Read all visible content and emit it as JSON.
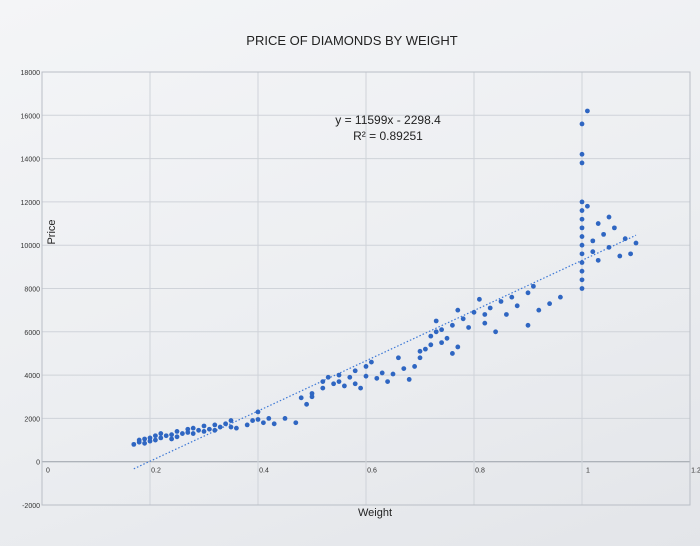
{
  "chart_data": {
    "type": "scatter",
    "title": "PRICE OF DIAMONDS BY WEIGHT",
    "xlabel": "Weight",
    "ylabel": "Price",
    "xlim": [
      0,
      1.2
    ],
    "ylim": [
      -2000,
      18000
    ],
    "x_ticks": [
      "0",
      "0.2",
      "0.4",
      "0.6",
      "0.8",
      "1",
      "1.2"
    ],
    "y_ticks": [
      "18000",
      "16000",
      "14000",
      "12000",
      "10000",
      "8000",
      "6000",
      "4000",
      "2000",
      "0",
      "-2000"
    ],
    "grid": true,
    "trendline": {
      "equation": "y = 11599x - 2298.4",
      "r_squared": "R² = 0.89251",
      "slope": 11599,
      "intercept": -2298.4,
      "style": "dotted",
      "x_range": [
        0.17,
        1.1
      ]
    },
    "colors": {
      "points": "#2f66c2",
      "trendline": "#3d78d6",
      "grid": "#cfd3d9"
    },
    "series": [
      {
        "points": [
          [
            0.17,
            800
          ],
          [
            0.18,
            900
          ],
          [
            0.18,
            1000
          ],
          [
            0.19,
            850
          ],
          [
            0.19,
            1050
          ],
          [
            0.2,
            950
          ],
          [
            0.2,
            1100
          ],
          [
            0.21,
            1200
          ],
          [
            0.21,
            1000
          ],
          [
            0.22,
            1100
          ],
          [
            0.22,
            1300
          ],
          [
            0.23,
            1200
          ],
          [
            0.24,
            1050
          ],
          [
            0.24,
            1250
          ],
          [
            0.25,
            1150
          ],
          [
            0.25,
            1400
          ],
          [
            0.26,
            1300
          ],
          [
            0.27,
            1500
          ],
          [
            0.27,
            1350
          ],
          [
            0.28,
            1300
          ],
          [
            0.28,
            1550
          ],
          [
            0.29,
            1450
          ],
          [
            0.3,
            1400
          ],
          [
            0.3,
            1650
          ],
          [
            0.31,
            1500
          ],
          [
            0.32,
            1700
          ],
          [
            0.32,
            1450
          ],
          [
            0.33,
            1600
          ],
          [
            0.34,
            1750
          ],
          [
            0.35,
            1900
          ],
          [
            0.35,
            1600
          ],
          [
            0.36,
            1550
          ],
          [
            0.38,
            1700
          ],
          [
            0.39,
            1900
          ],
          [
            0.4,
            2300
          ],
          [
            0.4,
            1950
          ],
          [
            0.41,
            1800
          ],
          [
            0.42,
            2000
          ],
          [
            0.43,
            1750
          ],
          [
            0.45,
            2000
          ],
          [
            0.47,
            1800
          ],
          [
            0.48,
            2950
          ],
          [
            0.49,
            2650
          ],
          [
            0.5,
            3000
          ],
          [
            0.5,
            3150
          ],
          [
            0.52,
            3700
          ],
          [
            0.52,
            3400
          ],
          [
            0.53,
            3900
          ],
          [
            0.54,
            3600
          ],
          [
            0.55,
            4000
          ],
          [
            0.55,
            3700
          ],
          [
            0.56,
            3500
          ],
          [
            0.57,
            3900
          ],
          [
            0.58,
            4200
          ],
          [
            0.58,
            3600
          ],
          [
            0.59,
            3400
          ],
          [
            0.6,
            4400
          ],
          [
            0.6,
            3950
          ],
          [
            0.61,
            4600
          ],
          [
            0.62,
            3850
          ],
          [
            0.63,
            4100
          ],
          [
            0.64,
            3700
          ],
          [
            0.65,
            4050
          ],
          [
            0.66,
            4800
          ],
          [
            0.67,
            4300
          ],
          [
            0.68,
            3800
          ],
          [
            0.69,
            4400
          ],
          [
            0.7,
            5100
          ],
          [
            0.7,
            4800
          ],
          [
            0.71,
            5200
          ],
          [
            0.72,
            5800
          ],
          [
            0.72,
            5400
          ],
          [
            0.73,
            6500
          ],
          [
            0.73,
            6000
          ],
          [
            0.74,
            5500
          ],
          [
            0.74,
            6100
          ],
          [
            0.75,
            5700
          ],
          [
            0.76,
            6300
          ],
          [
            0.76,
            5000
          ],
          [
            0.77,
            5300
          ],
          [
            0.77,
            7000
          ],
          [
            0.78,
            6600
          ],
          [
            0.79,
            6200
          ],
          [
            0.8,
            6900
          ],
          [
            0.81,
            7500
          ],
          [
            0.82,
            6400
          ],
          [
            0.82,
            6800
          ],
          [
            0.83,
            7100
          ],
          [
            0.84,
            6000
          ],
          [
            0.85,
            7400
          ],
          [
            0.86,
            6800
          ],
          [
            0.87,
            7600
          ],
          [
            0.88,
            7200
          ],
          [
            0.9,
            6300
          ],
          [
            0.9,
            7800
          ],
          [
            0.91,
            8100
          ],
          [
            0.92,
            7000
          ],
          [
            0.94,
            7300
          ],
          [
            0.96,
            7600
          ],
          [
            1.0,
            8000
          ],
          [
            1.0,
            8400
          ],
          [
            1.0,
            8800
          ],
          [
            1.0,
            9200
          ],
          [
            1.0,
            9600
          ],
          [
            1.0,
            10000
          ],
          [
            1.0,
            10400
          ],
          [
            1.0,
            10800
          ],
          [
            1.0,
            11200
          ],
          [
            1.0,
            11600
          ],
          [
            1.0,
            12000
          ],
          [
            1.0,
            13800
          ],
          [
            1.0,
            14200
          ],
          [
            1.0,
            15600
          ],
          [
            1.01,
            16200
          ],
          [
            1.01,
            11800
          ],
          [
            1.02,
            10200
          ],
          [
            1.02,
            9700
          ],
          [
            1.03,
            11000
          ],
          [
            1.03,
            9300
          ],
          [
            1.04,
            10500
          ],
          [
            1.05,
            9900
          ],
          [
            1.05,
            11300
          ],
          [
            1.06,
            10800
          ],
          [
            1.07,
            9500
          ],
          [
            1.08,
            10300
          ],
          [
            1.09,
            9600
          ],
          [
            1.1,
            10100
          ]
        ]
      }
    ]
  }
}
